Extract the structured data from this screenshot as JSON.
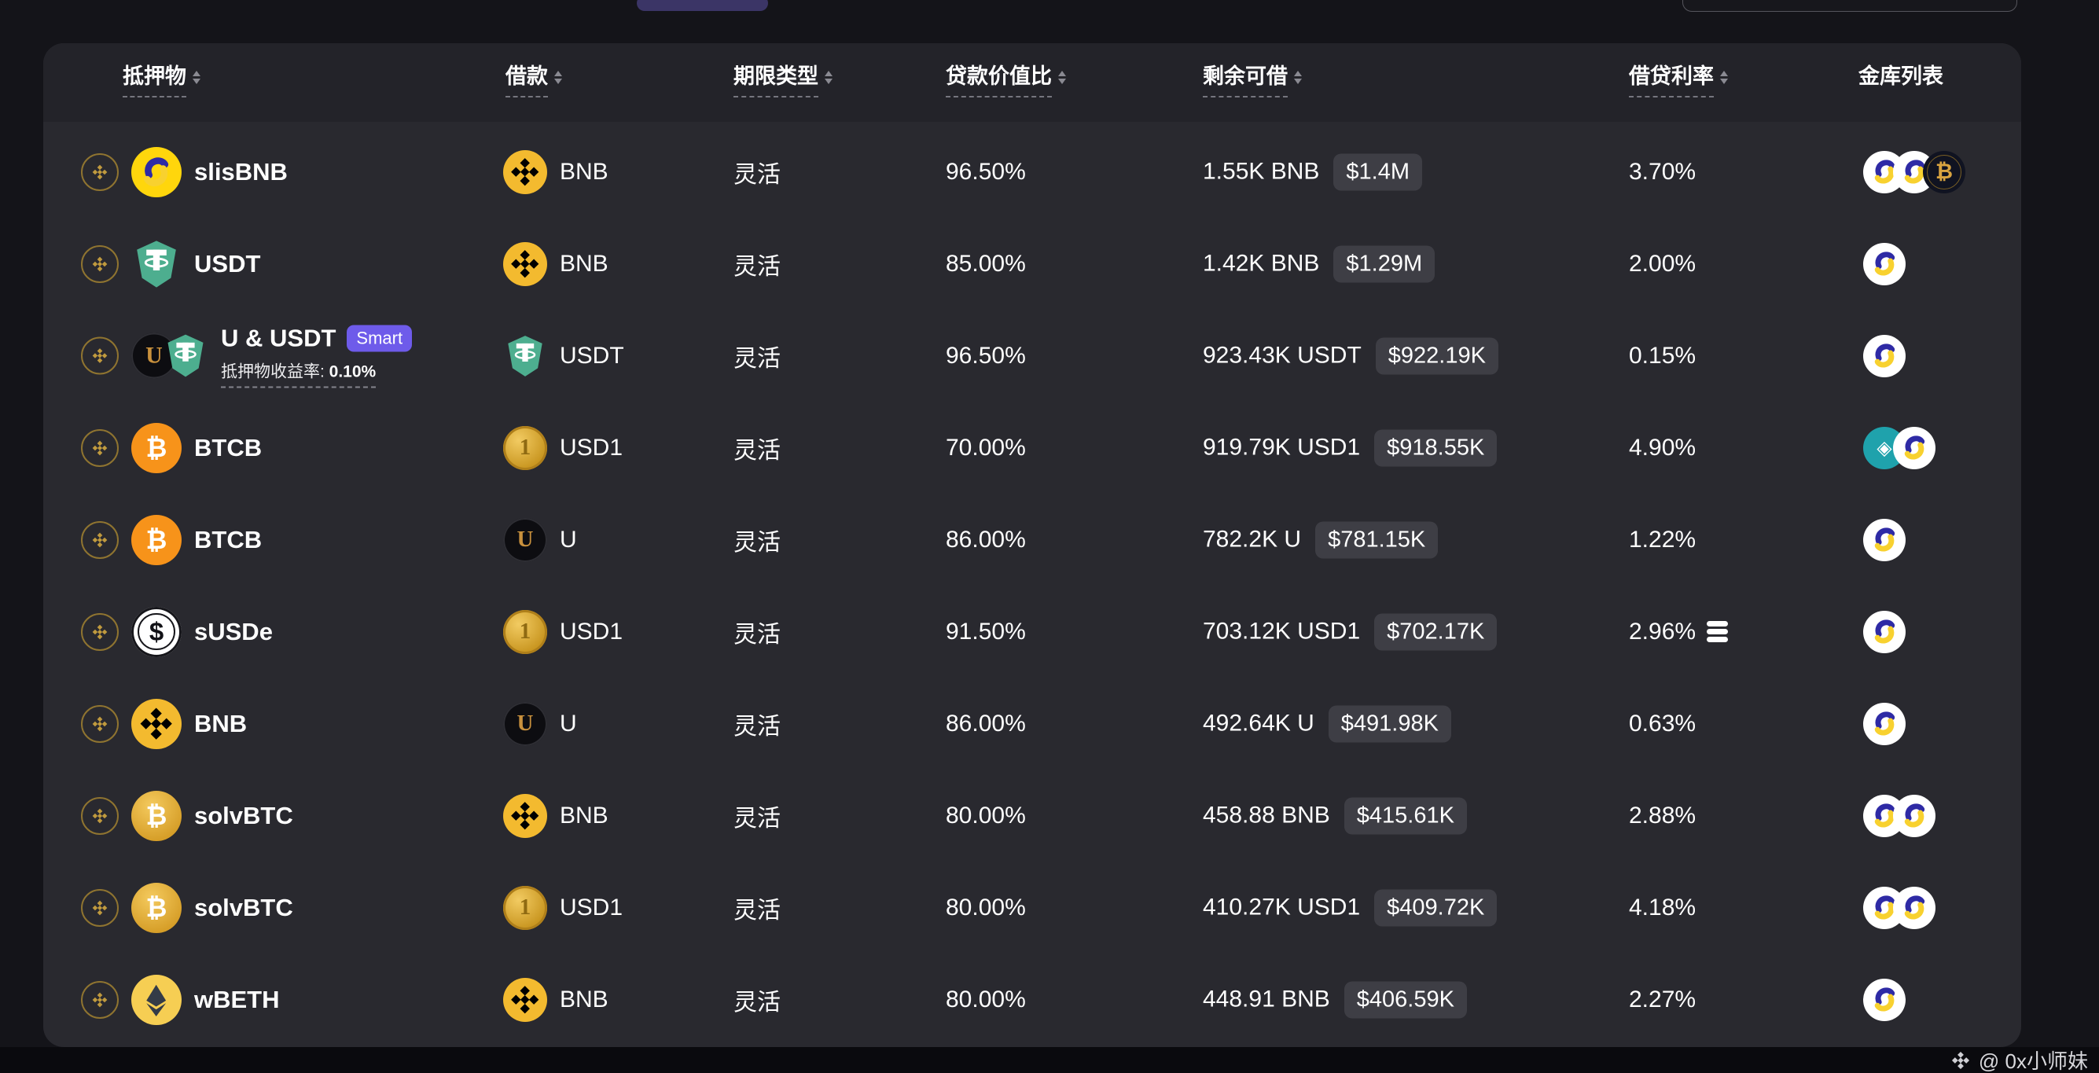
{
  "top": {
    "button_visible": true,
    "input_visible": true
  },
  "table": {
    "columns": [
      {
        "key": "collateral",
        "label": "抵押物",
        "sortable": true,
        "underline": true
      },
      {
        "key": "borrow",
        "label": "借款",
        "sortable": true,
        "underline": true
      },
      {
        "key": "term",
        "label": "期限类型",
        "sortable": true,
        "underline": true
      },
      {
        "key": "ltv",
        "label": "贷款价值比",
        "sortable": true,
        "underline": true
      },
      {
        "key": "remaining",
        "label": "剩余可借",
        "sortable": true,
        "underline": true
      },
      {
        "key": "rate",
        "label": "借贷利率",
        "sortable": true,
        "underline": true
      },
      {
        "key": "vaults",
        "label": "金库列表",
        "sortable": false,
        "underline": false
      }
    ],
    "rows": [
      {
        "collateral": {
          "name": "slisBNB",
          "icons": [
            "slisbnb"
          ]
        },
        "borrow": {
          "name": "BNB",
          "icon": "bnb"
        },
        "term": "灵活",
        "ltv": "96.50%",
        "remaining": {
          "amount": "1.55K BNB",
          "usd": "$1.4M"
        },
        "rate": "3.70%",
        "vaults": [
          "lista",
          "lista",
          "pangolin"
        ]
      },
      {
        "collateral": {
          "name": "USDT",
          "icons": [
            "usdt"
          ]
        },
        "borrow": {
          "name": "BNB",
          "icon": "bnb"
        },
        "term": "灵活",
        "ltv": "85.00%",
        "remaining": {
          "amount": "1.42K BNB",
          "usd": "$1.29M"
        },
        "rate": "2.00%",
        "vaults": [
          "lista"
        ]
      },
      {
        "collateral": {
          "name": "U & USDT",
          "icons": [
            "u",
            "usdt"
          ],
          "badge": "Smart",
          "sub_label": "抵押物收益率: ",
          "sub_value": "0.10%"
        },
        "borrow": {
          "name": "USDT",
          "icon": "usdt"
        },
        "term": "灵活",
        "ltv": "96.50%",
        "remaining": {
          "amount": "923.43K USDT",
          "usd": "$922.19K"
        },
        "rate": "0.15%",
        "vaults": [
          "lista"
        ]
      },
      {
        "collateral": {
          "name": "BTCB",
          "icons": [
            "btcb"
          ]
        },
        "borrow": {
          "name": "USD1",
          "icon": "usd1"
        },
        "term": "灵活",
        "ltv": "70.00%",
        "remaining": {
          "amount": "919.79K USD1",
          "usd": "$918.55K"
        },
        "rate": "4.90%",
        "vaults": [
          "teal",
          "lista"
        ]
      },
      {
        "collateral": {
          "name": "BTCB",
          "icons": [
            "btcb"
          ]
        },
        "borrow": {
          "name": "U",
          "icon": "u"
        },
        "term": "灵活",
        "ltv": "86.00%",
        "remaining": {
          "amount": "782.2K U",
          "usd": "$781.15K"
        },
        "rate": "1.22%",
        "vaults": [
          "lista"
        ]
      },
      {
        "collateral": {
          "name": "sUSDe",
          "icons": [
            "susde"
          ]
        },
        "borrow": {
          "name": "USD1",
          "icon": "usd1"
        },
        "term": "灵活",
        "ltv": "91.50%",
        "remaining": {
          "amount": "703.12K USD1",
          "usd": "$702.17K"
        },
        "rate": "2.96%",
        "rate_icon": "coin-stack",
        "vaults": [
          "lista"
        ]
      },
      {
        "collateral": {
          "name": "BNB",
          "icons": [
            "bnb"
          ]
        },
        "borrow": {
          "name": "U",
          "icon": "u"
        },
        "term": "灵活",
        "ltv": "86.00%",
        "remaining": {
          "amount": "492.64K U",
          "usd": "$491.98K"
        },
        "rate": "0.63%",
        "vaults": [
          "lista"
        ]
      },
      {
        "collateral": {
          "name": "solvBTC",
          "icons": [
            "solvbtc"
          ]
        },
        "borrow": {
          "name": "BNB",
          "icon": "bnb"
        },
        "term": "灵活",
        "ltv": "80.00%",
        "remaining": {
          "amount": "458.88 BNB",
          "usd": "$415.61K"
        },
        "rate": "2.88%",
        "vaults": [
          "lista",
          "lista"
        ]
      },
      {
        "collateral": {
          "name": "solvBTC",
          "icons": [
            "solvbtc"
          ]
        },
        "borrow": {
          "name": "USD1",
          "icon": "usd1"
        },
        "term": "灵活",
        "ltv": "80.00%",
        "remaining": {
          "amount": "410.27K USD1",
          "usd": "$409.72K"
        },
        "rate": "4.18%",
        "vaults": [
          "lista",
          "lista"
        ]
      },
      {
        "collateral": {
          "name": "wBETH",
          "icons": [
            "wbeth"
          ]
        },
        "borrow": {
          "name": "BNB",
          "icon": "bnb"
        },
        "term": "灵活",
        "ltv": "80.00%",
        "remaining": {
          "amount": "448.91 BNB",
          "usd": "$406.59K"
        },
        "rate": "2.27%",
        "vaults": [
          "lista"
        ]
      }
    ]
  },
  "icon_styles": {
    "slisbnb": {
      "bg": "#FFD60C",
      "svg": "lista"
    },
    "usdt": {
      "svg": "usdt"
    },
    "u": {
      "bg": "#0D0D11",
      "fg": "#C9913D",
      "glyph": "U"
    },
    "usd1": {
      "fg": "#8F6A12",
      "glyph": "1"
    },
    "btcb": {
      "bg": "#F7931A",
      "fg": "#FFFFFF",
      "glyph": "₿"
    },
    "susde": {
      "bg": "#FFFFFF",
      "fg": "#111116",
      "glyph": "$"
    },
    "bnb": {
      "bg": "#F3BA2F",
      "svg": "bnbcube"
    },
    "solvbtc": {
      "fg": "#FFFFFF",
      "glyph": "₿"
    },
    "wbeth": {
      "bg": "#F6CE53",
      "svg": "eth"
    },
    "lista": {
      "svg": "lista"
    },
    "pangolin": {
      "glyph": "₿"
    },
    "teal": {
      "glyph": "◈"
    }
  },
  "watermark": {
    "handle": "@ 0x小师妹"
  },
  "colors": {
    "page_bg": "#141419",
    "card_bg": "#29292F",
    "header_bg": "#232329",
    "badge_bg": "#3E3E45",
    "smart_badge": "#6E5BEA",
    "lista_blue": "#2E2AA5",
    "lista_yellow": "#F8D12F",
    "usdt_green": "#4DAE8F",
    "btc_orange": "#F7931A",
    "bnb_yellow": "#F3BA2F",
    "teal_vault": "#1FA2AC",
    "gold_accent": "#C09A3E"
  }
}
